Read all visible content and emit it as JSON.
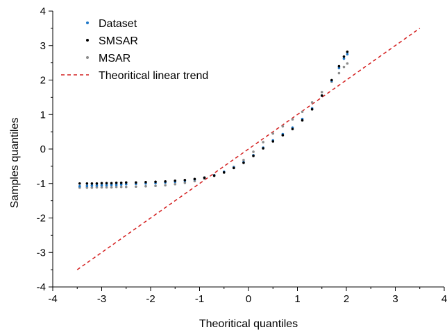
{
  "chart_data": {
    "type": "scatter",
    "title": "",
    "xlabel": "Theoritical quantiles",
    "ylabel": "Samples quantiles",
    "xlim": [
      -4,
      4
    ],
    "ylim": [
      -4,
      4
    ],
    "xticks": [
      -4,
      -3,
      -2,
      -1,
      0,
      1,
      2,
      3,
      4
    ],
    "yticks": [
      -4,
      -3,
      -2,
      -1,
      0,
      1,
      2,
      3,
      4
    ],
    "grid": false,
    "legend_position": "top-left",
    "series": [
      {
        "name": "Dataset",
        "color": "#1f78c8",
        "marker": "dot",
        "points": [
          [
            -3.45,
            -1.08
          ],
          [
            -3.3,
            -1.07
          ],
          [
            -3.2,
            -1.06
          ],
          [
            -3.1,
            -1.06
          ],
          [
            -3.0,
            -1.05
          ],
          [
            -2.9,
            -1.05
          ],
          [
            -2.8,
            -1.04
          ],
          [
            -2.7,
            -1.04
          ],
          [
            -2.6,
            -1.03
          ],
          [
            -2.5,
            -1.02
          ],
          [
            -2.3,
            -1.01
          ],
          [
            -2.1,
            -1.0
          ],
          [
            -1.9,
            -0.99
          ],
          [
            -1.7,
            -0.97
          ],
          [
            -1.5,
            -0.95
          ],
          [
            -1.3,
            -0.92
          ],
          [
            -1.1,
            -0.88
          ],
          [
            -0.9,
            -0.83
          ],
          [
            -0.7,
            -0.76
          ],
          [
            -0.5,
            -0.66
          ],
          [
            -0.3,
            -0.53
          ],
          [
            -0.1,
            -0.38
          ],
          [
            0.1,
            -0.18
          ],
          [
            0.3,
            0.04
          ],
          [
            0.5,
            0.25
          ],
          [
            0.7,
            0.43
          ],
          [
            0.9,
            0.62
          ],
          [
            1.1,
            0.87
          ],
          [
            1.3,
            1.18
          ],
          [
            1.5,
            1.55
          ],
          [
            1.7,
            1.98
          ],
          [
            1.85,
            2.35
          ],
          [
            1.95,
            2.62
          ],
          [
            2.02,
            2.75
          ]
        ]
      },
      {
        "name": "SMSAR",
        "color": "#000000",
        "marker": "dot",
        "points": [
          [
            -3.45,
            -1.0
          ],
          [
            -3.3,
            -1.0
          ],
          [
            -3.2,
            -1.0
          ],
          [
            -3.1,
            -1.0
          ],
          [
            -3.0,
            -0.99
          ],
          [
            -2.9,
            -0.99
          ],
          [
            -2.8,
            -0.99
          ],
          [
            -2.7,
            -0.98
          ],
          [
            -2.6,
            -0.98
          ],
          [
            -2.5,
            -0.97
          ],
          [
            -2.3,
            -0.97
          ],
          [
            -2.1,
            -0.96
          ],
          [
            -1.9,
            -0.95
          ],
          [
            -1.7,
            -0.94
          ],
          [
            -1.5,
            -0.92
          ],
          [
            -1.3,
            -0.9
          ],
          [
            -1.1,
            -0.87
          ],
          [
            -0.9,
            -0.83
          ],
          [
            -0.7,
            -0.77
          ],
          [
            -0.5,
            -0.68
          ],
          [
            -0.3,
            -0.55
          ],
          [
            -0.1,
            -0.4
          ],
          [
            0.1,
            -0.2
          ],
          [
            0.3,
            0.02
          ],
          [
            0.5,
            0.22
          ],
          [
            0.7,
            0.4
          ],
          [
            0.9,
            0.58
          ],
          [
            1.1,
            0.83
          ],
          [
            1.3,
            1.15
          ],
          [
            1.5,
            1.55
          ],
          [
            1.7,
            2.0
          ],
          [
            1.85,
            2.4
          ],
          [
            1.95,
            2.68
          ],
          [
            2.02,
            2.82
          ]
        ]
      },
      {
        "name": "MSAR",
        "color": "#8c8c8c",
        "marker": "dot",
        "points": [
          [
            -3.45,
            -1.12
          ],
          [
            -3.3,
            -1.12
          ],
          [
            -3.2,
            -1.12
          ],
          [
            -3.1,
            -1.11
          ],
          [
            -3.0,
            -1.11
          ],
          [
            -2.9,
            -1.11
          ],
          [
            -2.8,
            -1.11
          ],
          [
            -2.7,
            -1.1
          ],
          [
            -2.6,
            -1.1
          ],
          [
            -2.5,
            -1.1
          ],
          [
            -2.3,
            -1.09
          ],
          [
            -2.1,
            -1.08
          ],
          [
            -1.9,
            -1.07
          ],
          [
            -1.7,
            -1.05
          ],
          [
            -1.5,
            -1.02
          ],
          [
            -1.3,
            -0.98
          ],
          [
            -1.1,
            -0.93
          ],
          [
            -0.9,
            -0.86
          ],
          [
            -0.7,
            -0.78
          ],
          [
            -0.5,
            -0.67
          ],
          [
            -0.3,
            -0.52
          ],
          [
            -0.1,
            -0.32
          ],
          [
            0.1,
            -0.08
          ],
          [
            0.3,
            0.2
          ],
          [
            0.5,
            0.45
          ],
          [
            0.7,
            0.66
          ],
          [
            0.9,
            0.86
          ],
          [
            1.1,
            1.08
          ],
          [
            1.3,
            1.35
          ],
          [
            1.5,
            1.65
          ],
          [
            1.7,
            1.95
          ],
          [
            1.85,
            2.2
          ],
          [
            1.95,
            2.38
          ],
          [
            2.02,
            2.48
          ]
        ]
      },
      {
        "name": "Theoritical linear trend",
        "color": "#d42020",
        "line_style": "dashed",
        "points": [
          [
            -3.5,
            -3.5
          ],
          [
            3.5,
            3.5
          ]
        ]
      }
    ]
  }
}
